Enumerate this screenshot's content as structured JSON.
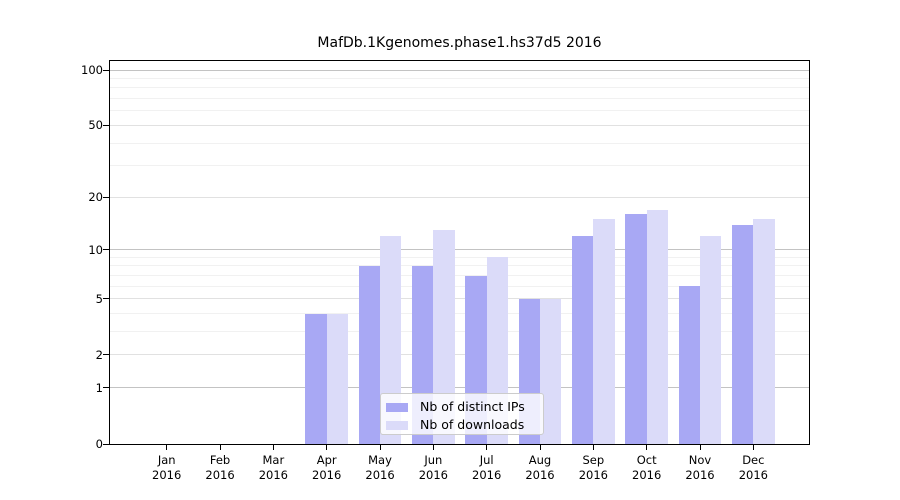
{
  "chart_data": {
    "type": "bar",
    "title": "MafDb.1Kgenomes.phase1.hs37d5 2016",
    "categories": [
      "Jan",
      "Feb",
      "Mar",
      "Apr",
      "May",
      "Jun",
      "Jul",
      "Aug",
      "Sep",
      "Oct",
      "Nov",
      "Dec"
    ],
    "year_label": "2016",
    "series": [
      {
        "name": "Nb of distinct IPs",
        "color": "#a8a8f4",
        "values": [
          0,
          0,
          0,
          4,
          8,
          8,
          7,
          5,
          12,
          16,
          6,
          14
        ]
      },
      {
        "name": "Nb of downloads",
        "color": "#dbdbf9",
        "values": [
          0,
          0,
          0,
          4,
          12,
          13,
          9,
          5,
          15,
          17,
          12,
          15
        ]
      }
    ],
    "xlabel": "",
    "ylabel": "",
    "y_scale": "log1p",
    "ylim": [
      0,
      112
    ],
    "y_ticks": [
      0,
      1,
      2,
      5,
      10,
      20,
      50,
      100
    ],
    "y_decade_gridlines": [
      1,
      10,
      100
    ],
    "y_minor_gridlines": [
      3,
      4,
      6,
      7,
      8,
      9,
      30,
      40,
      60,
      70,
      80,
      90
    ],
    "grid": true,
    "legend_position": "lower center"
  },
  "colors": {
    "decade_grid": "#c3c3c3",
    "mid_grid": "#e1e1e1",
    "minor_grid": "#f1f1f1",
    "spine": "#000000",
    "background": "#ffffff",
    "text": "#000000"
  }
}
